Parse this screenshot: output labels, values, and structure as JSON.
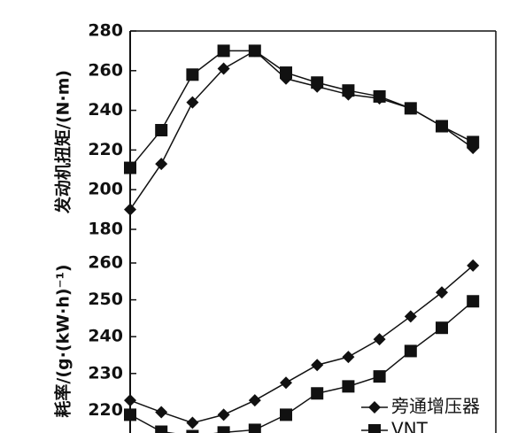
{
  "chart_data": [
    {
      "type": "line",
      "y_label": "发动机扭矩/(N·m)",
      "categories": [
        null,
        null,
        null,
        null,
        null,
        null,
        null,
        null,
        null,
        null,
        null,
        null
      ],
      "series": [
        {
          "name": "旁通增压器",
          "color": "#111111",
          "marker": "diamond",
          "values": [
            190,
            213,
            244,
            261,
            270,
            256,
            252,
            248,
            246,
            241,
            232,
            221
          ]
        },
        {
          "name": "VNT",
          "color": "#111111",
          "marker": "square",
          "values": [
            211,
            230,
            258,
            270,
            270,
            259,
            254,
            250,
            247,
            241,
            232,
            224
          ]
        }
      ],
      "ylim": [
        180,
        280
      ],
      "yticks": [
        180,
        200,
        220,
        240,
        260,
        280
      ]
    },
    {
      "type": "line",
      "y_label": "耗率/(g·(kW·h)⁻¹)",
      "categories": [
        null,
        null,
        null,
        null,
        null,
        null,
        null,
        null,
        null,
        null,
        null,
        null
      ],
      "series": [
        {
          "name": "旁通增压器",
          "color": "#111111",
          "marker": "diamond",
          "values": [
            222.7,
            219.5,
            216.6,
            218.8,
            222.7,
            227.5,
            232.3,
            234.5,
            239.3,
            245.5,
            252,
            259.3
          ]
        },
        {
          "name": "VNT",
          "color": "#111111",
          "marker": "square",
          "values": [
            218.8,
            214.2,
            213,
            214,
            214.7,
            218.8,
            224.6,
            226.5,
            229.2,
            236.1,
            242.4,
            249.6
          ]
        }
      ],
      "ylim": [
        210,
        260
      ],
      "yticks": [
        220,
        230,
        240,
        250,
        260
      ],
      "legend": "lower right"
    }
  ]
}
